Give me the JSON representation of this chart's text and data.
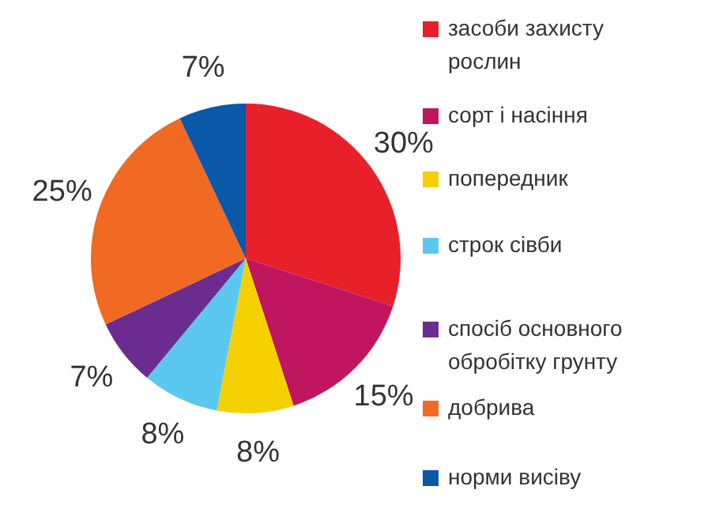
{
  "chart_data": {
    "type": "pie",
    "categories": [
      "засоби захисту рослин",
      "сорт і насіння",
      "попередник",
      "строк сівби",
      "спосіб основного обробітку грунту",
      "добрива",
      "норми висіву"
    ],
    "values": [
      30,
      15,
      8,
      8,
      7,
      25,
      7
    ],
    "colors": [
      "#e8202a",
      "#c0155f",
      "#f5d000",
      "#5bc8ef",
      "#6a2d8f",
      "#f06a23",
      "#0a58a8"
    ],
    "value_labels": [
      "30%",
      "15%",
      "8%",
      "8%",
      "7%",
      "25%",
      "7%"
    ],
    "legend": "right"
  }
}
